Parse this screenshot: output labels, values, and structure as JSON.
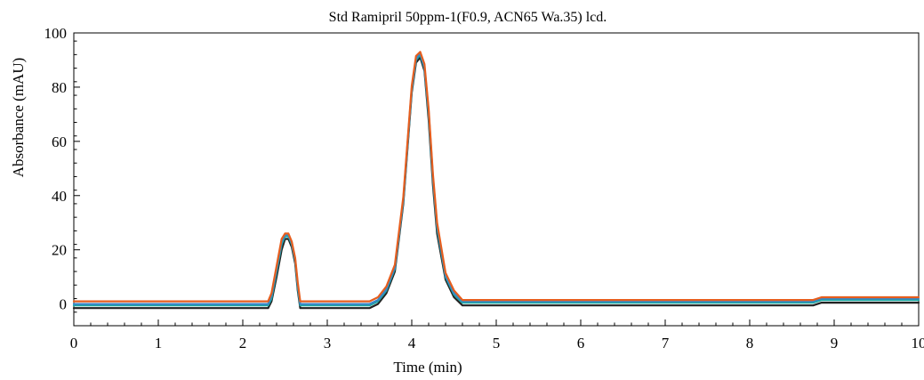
{
  "chart_data": {
    "type": "line",
    "title": "Std Ramipril 50ppm-1(F0.9, ACN65 Wa.35) lcd.",
    "xlabel": "Time (min)",
    "ylabel": "Absorbance (mAU)",
    "xlim": [
      0,
      10
    ],
    "ylim": [
      -8,
      100
    ],
    "x_ticks": [
      0,
      1,
      2,
      3,
      4,
      5,
      6,
      7,
      8,
      9,
      10
    ],
    "y_ticks": [
      0,
      20,
      40,
      60,
      80,
      100
    ],
    "grid": false,
    "legend": "none",
    "series": [
      {
        "color": "#222222",
        "x": [
          0,
          2.3,
          2.34,
          2.4,
          2.46,
          2.5,
          2.54,
          2.58,
          2.62,
          2.65,
          2.68,
          2.7,
          3.4,
          3.5,
          3.6,
          3.7,
          3.8,
          3.9,
          4.0,
          4.05,
          4.1,
          4.15,
          4.2,
          4.25,
          4.3,
          4.4,
          4.5,
          4.6,
          4.65,
          5.0,
          6.0,
          7.0,
          8.0,
          8.75,
          8.85,
          9.0,
          9.5,
          10.0
        ],
        "y": [
          -1.5,
          -1.5,
          1,
          10,
          20,
          24,
          24,
          21,
          15,
          5,
          -1.5,
          -1.5,
          -1.5,
          -1.5,
          0,
          4,
          12,
          37,
          78,
          89,
          91,
          86,
          68,
          44,
          26,
          9,
          2.5,
          -0.5,
          -0.5,
          -0.5,
          -0.5,
          -0.5,
          -0.5,
          -0.5,
          0.5,
          0.5,
          0.5,
          0.5
        ]
      },
      {
        "color": "#1aa8a0",
        "x": [
          0,
          2.3,
          2.34,
          2.4,
          2.46,
          2.5,
          2.54,
          2.58,
          2.62,
          2.65,
          2.68,
          2.7,
          3.4,
          3.5,
          3.6,
          3.7,
          3.8,
          3.9,
          4.0,
          4.05,
          4.1,
          4.15,
          4.2,
          4.25,
          4.3,
          4.4,
          4.5,
          4.6,
          4.65,
          5.0,
          6.0,
          7.0,
          8.0,
          8.75,
          8.85,
          9.0,
          9.5,
          10.0
        ],
        "y": [
          -0.5,
          -0.5,
          2,
          12,
          22,
          25,
          25,
          22,
          16,
          6,
          -0.5,
          -0.5,
          -0.5,
          -0.5,
          1,
          5,
          13,
          38,
          79,
          90,
          92,
          87,
          70,
          46,
          28,
          10,
          3.5,
          0.5,
          0.5,
          0.5,
          0.5,
          0.5,
          0.5,
          0.5,
          1.5,
          1.5,
          1.5,
          1.5
        ]
      },
      {
        "color": "#3a86c8",
        "x": [
          0,
          2.3,
          2.34,
          2.4,
          2.46,
          2.5,
          2.54,
          2.58,
          2.62,
          2.65,
          2.68,
          2.7,
          3.4,
          3.5,
          3.6,
          3.7,
          3.8,
          3.9,
          4.0,
          4.05,
          4.1,
          4.15,
          4.2,
          4.25,
          4.3,
          4.4,
          4.5,
          4.6,
          4.65,
          5.0,
          6.0,
          7.0,
          8.0,
          8.75,
          8.85,
          9.0,
          9.5,
          10.0
        ],
        "y": [
          0,
          0,
          3,
          13,
          23,
          25.5,
          25.5,
          22.5,
          16.5,
          7,
          0,
          0,
          0,
          0,
          1.5,
          5.5,
          13.5,
          38.5,
          79.5,
          90.5,
          92.5,
          87.5,
          71,
          47,
          29,
          10.5,
          4,
          1,
          1,
          1,
          1,
          1,
          1,
          1,
          2,
          2,
          2,
          2
        ]
      },
      {
        "color": "#e65e1e",
        "x": [
          0,
          2.3,
          2.34,
          2.4,
          2.46,
          2.5,
          2.54,
          2.58,
          2.62,
          2.65,
          2.68,
          2.7,
          3.4,
          3.5,
          3.6,
          3.7,
          3.8,
          3.9,
          4.0,
          4.05,
          4.1,
          4.15,
          4.2,
          4.25,
          4.3,
          4.4,
          4.5,
          4.6,
          4.65,
          5.0,
          6.0,
          7.0,
          8.0,
          8.75,
          8.85,
          9.0,
          9.5,
          10.0
        ],
        "y": [
          1,
          1,
          4,
          14,
          24,
          26,
          26,
          23,
          17,
          8,
          1,
          1,
          1,
          1,
          2.5,
          6.5,
          14.5,
          39.5,
          80.5,
          91.5,
          93,
          88.5,
          72,
          48,
          30,
          11.5,
          5,
          1.5,
          1.5,
          1.5,
          1.5,
          1.5,
          1.5,
          1.5,
          2.5,
          2.5,
          2.5,
          2.5
        ]
      }
    ]
  }
}
